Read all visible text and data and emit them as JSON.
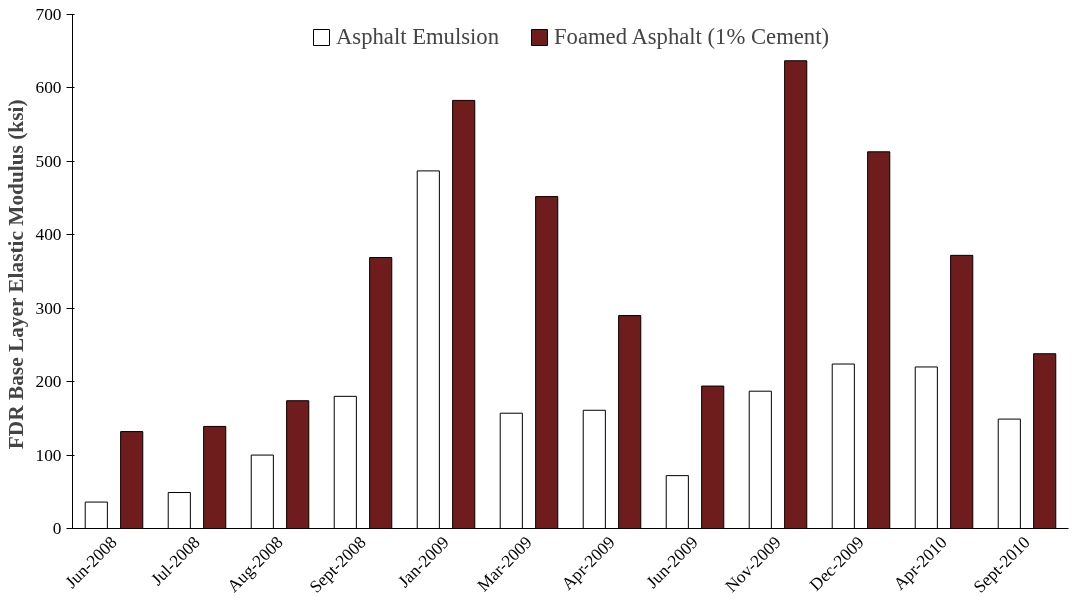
{
  "chart_data": {
    "type": "bar",
    "ylabel": "FDR Base Layer Elastic  Modulus (ksi)",
    "categories": [
      "Jun-2008",
      "Jul-2008",
      "Aug-2008",
      "Sept-2008",
      "Jan-2009",
      "Mar-2009",
      "Apr-2009",
      "Jun-2009",
      "Nov-2009",
      "Dec-2009",
      "Apr-2010",
      "Sept-2010"
    ],
    "series": [
      {
        "name": "Asphalt Emulsion",
        "color": "#ffffff",
        "values": [
          36,
          49,
          100,
          180,
          487,
          157,
          161,
          72,
          187,
          224,
          220,
          149
        ]
      },
      {
        "name": "Foamed Asphalt (1% Cement)",
        "color": "#6e1c1c",
        "values": [
          132,
          139,
          174,
          369,
          583,
          452,
          290,
          194,
          637,
          513,
          372,
          238
        ]
      }
    ],
    "ylim": [
      0,
      700
    ],
    "yticks": [
      0,
      100,
      200,
      300,
      400,
      500,
      600,
      700
    ],
    "grid": false,
    "legend": "top"
  }
}
